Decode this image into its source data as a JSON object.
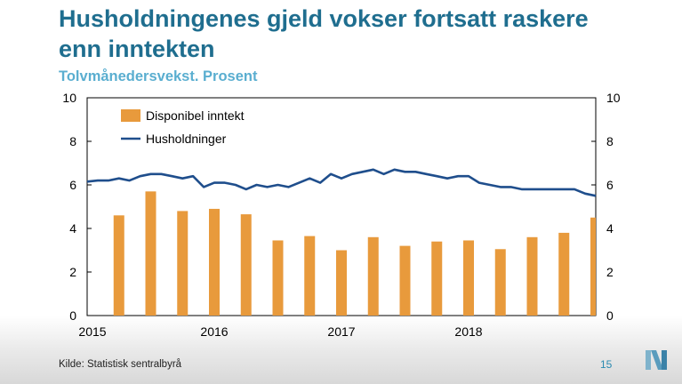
{
  "slide": {
    "title": "Husholdningenes gjeld vokser fortsatt raskere enn inntekten",
    "subtitle": "Tolvmånedersvekst. Prosent",
    "source": "Kilde: Statistisk sentralbyrå",
    "page_number": "15",
    "logo_icon": "norges-bank-logo-icon"
  },
  "chart_data": {
    "type": "bar",
    "title": "",
    "xlabel": "",
    "ylabel": "",
    "ylim": [
      0,
      10
    ],
    "y_ticks": [
      "0",
      "2",
      "4",
      "6",
      "8",
      "10"
    ],
    "y_ticks_right": [
      "0",
      "2",
      "4",
      "6",
      "8",
      "10"
    ],
    "x_ticks": [
      "2015",
      "2016",
      "2017",
      "2018"
    ],
    "x_range": [
      2015.0,
      2019.0
    ],
    "legend_position": "top-left",
    "grid": false,
    "series": [
      {
        "name": "Disponibel inntekt",
        "type": "bar",
        "color": "#e89a3c",
        "x": [
          2015.25,
          2015.5,
          2015.75,
          2016.0,
          2016.25,
          2016.5,
          2016.75,
          2017.0,
          2017.25,
          2017.5,
          2017.75,
          2018.0,
          2018.25,
          2018.5,
          2018.75,
          2019.0
        ],
        "values": [
          4.6,
          5.7,
          4.8,
          4.9,
          4.65,
          3.45,
          3.65,
          3.0,
          3.6,
          3.2,
          3.4,
          3.45,
          3.05,
          3.6,
          3.8,
          4.5
        ]
      },
      {
        "name": "Husholdninger",
        "type": "line",
        "color": "#1f4e8c",
        "x": [
          2015.0,
          2015.083,
          2015.167,
          2015.25,
          2015.333,
          2015.417,
          2015.5,
          2015.583,
          2015.667,
          2015.75,
          2015.833,
          2015.917,
          2016.0,
          2016.083,
          2016.167,
          2016.25,
          2016.333,
          2016.417,
          2016.5,
          2016.583,
          2016.667,
          2016.75,
          2016.833,
          2016.917,
          2017.0,
          2017.083,
          2017.167,
          2017.25,
          2017.333,
          2017.417,
          2017.5,
          2017.583,
          2017.667,
          2017.75,
          2017.833,
          2017.917,
          2018.0,
          2018.083,
          2018.167,
          2018.25,
          2018.333,
          2018.417,
          2018.5,
          2018.583,
          2018.667,
          2018.75,
          2018.833,
          2018.917,
          2019.0
        ],
        "values": [
          6.15,
          6.2,
          6.2,
          6.3,
          6.2,
          6.4,
          6.5,
          6.5,
          6.4,
          6.3,
          6.4,
          5.9,
          6.1,
          6.1,
          6.0,
          5.8,
          6.0,
          5.9,
          6.0,
          5.9,
          6.1,
          6.3,
          6.1,
          6.5,
          6.3,
          6.5,
          6.6,
          6.7,
          6.5,
          6.7,
          6.6,
          6.6,
          6.5,
          6.4,
          6.3,
          6.4,
          6.4,
          6.1,
          6.0,
          5.9,
          5.9,
          5.8,
          5.8,
          5.8,
          5.8,
          5.8,
          5.8,
          5.6,
          5.5
        ]
      }
    ]
  }
}
